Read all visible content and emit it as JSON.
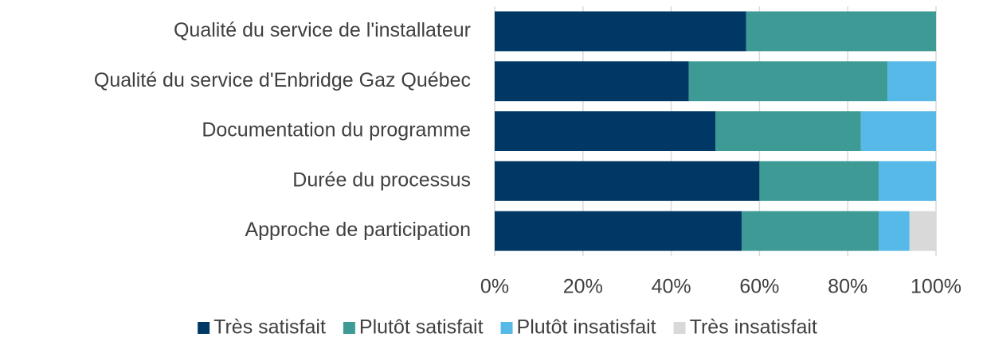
{
  "chart_data": {
    "type": "stacked_bar_horizontal",
    "categories": [
      "Qualité du service de l'installateur",
      "Qualité du service d'Enbridge Gaz Québec",
      "Documentation du programme",
      "Durée du processus",
      "Approche de participation"
    ],
    "series": [
      {
        "name": "Très satisfait",
        "color": "#003865",
        "values": [
          57,
          44,
          50,
          60,
          56
        ]
      },
      {
        "name": "Plutôt satisfait",
        "color": "#3e9a94",
        "values": [
          43,
          45,
          33,
          27,
          31
        ]
      },
      {
        "name": "Plutôt insatisfait",
        "color": "#56b9e8",
        "values": [
          0,
          11,
          17,
          13,
          7
        ]
      },
      {
        "name": "Très insatisfait",
        "color": "#d9d9d9",
        "values": [
          0,
          0,
          0,
          0,
          6
        ]
      }
    ],
    "xlim": [
      0,
      100
    ],
    "xticks": [
      {
        "value": 0,
        "label": "0%"
      },
      {
        "value": 20,
        "label": "20%"
      },
      {
        "value": 40,
        "label": "40%"
      },
      {
        "value": 60,
        "label": "60%"
      },
      {
        "value": 80,
        "label": "80%"
      },
      {
        "value": 100,
        "label": "100%"
      }
    ],
    "grid": true,
    "legend": "bottom"
  }
}
